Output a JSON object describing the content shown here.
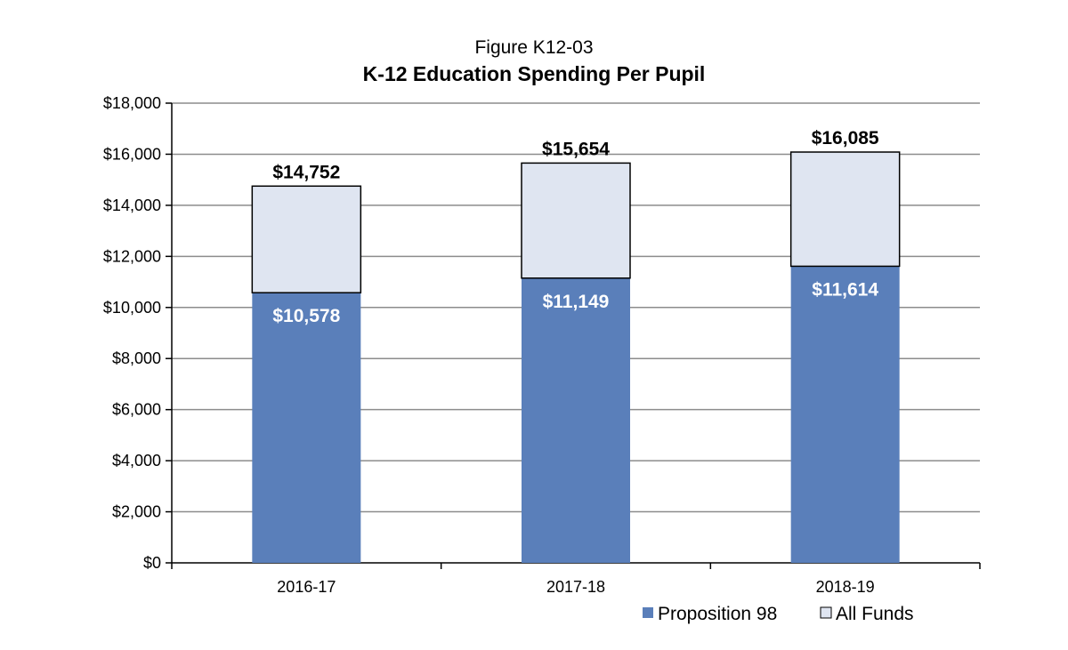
{
  "chart_data": {
    "type": "bar",
    "stacked": true,
    "subtitle": "Figure K12-03",
    "title": "K-12 Education Spending Per Pupil",
    "categories": [
      "2016-17",
      "2017-18",
      "2018-19"
    ],
    "series": [
      {
        "name": "Proposition 98",
        "values": [
          10578,
          11149,
          11614
        ],
        "labels": [
          "$10,578",
          "$11,149",
          "$11,614"
        ],
        "color": "#5a7fba"
      },
      {
        "name": "All Funds",
        "values": [
          4174,
          4505,
          4471
        ],
        "color": "#dfe5f1"
      }
    ],
    "totals": [
      14752,
      15654,
      16085
    ],
    "total_labels": [
      "$14,752",
      "$15,654",
      "$16,085"
    ],
    "ylim": [
      0,
      18000
    ],
    "y_ticks": [
      0,
      2000,
      4000,
      6000,
      8000,
      10000,
      12000,
      14000,
      16000,
      18000
    ],
    "y_tick_labels": [
      "$0",
      "$2,000",
      "$4,000",
      "$6,000",
      "$8,000",
      "$10,000",
      "$12,000",
      "$14,000",
      "$16,000",
      "$18,000"
    ],
    "xlabel": "",
    "ylabel": "",
    "grid": true,
    "legend_position": "bottom-right"
  }
}
